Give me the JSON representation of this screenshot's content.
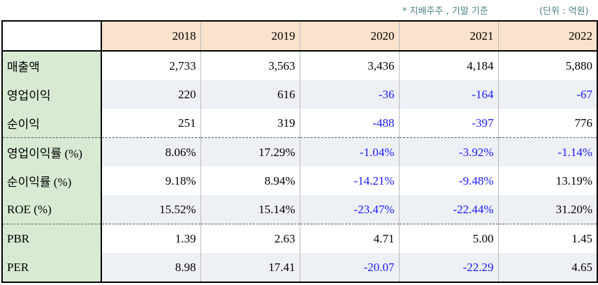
{
  "notes": {
    "basis": "* 지배주주 , 기말 기준",
    "unit": "(단위 : 억원)"
  },
  "table": {
    "headers": [
      "2018",
      "2019",
      "2020",
      "2021",
      "2022"
    ],
    "rows": [
      {
        "label": "매출액",
        "values": [
          "2,733",
          "3,563",
          "3,436",
          "4,184",
          "5,880"
        ]
      },
      {
        "label": "영업이익",
        "values": [
          "220",
          "616",
          "-36",
          "-164",
          "-67"
        ]
      },
      {
        "label": "순이익",
        "values": [
          "251",
          "319",
          "-488",
          "-397",
          "776"
        ]
      },
      {
        "label": "영업이익률 (%)",
        "values": [
          "8.06%",
          "17.29%",
          "-1.04%",
          "-3.92%",
          "-1.14%"
        ]
      },
      {
        "label": "순이익률 (%)",
        "values": [
          "9.18%",
          "8.94%",
          "-14.21%",
          "-9.48%",
          "13.19%"
        ]
      },
      {
        "label": "ROE (%)",
        "values": [
          "15.52%",
          "15.14%",
          "-23.47%",
          "-22.44%",
          "31.20%"
        ]
      },
      {
        "label": "PBR",
        "values": [
          "1.39",
          "2.63",
          "4.71",
          "5.00",
          "1.45"
        ]
      },
      {
        "label": "PER",
        "values": [
          "8.98",
          "17.41",
          "-20.07",
          "-22.29",
          "4.65"
        ]
      }
    ]
  },
  "colors": {
    "negative": "#1a1aff",
    "header_bg": "#fbe2cc",
    "label_bg": "#d9ead3",
    "shade_bg": "#edf0f5"
  }
}
